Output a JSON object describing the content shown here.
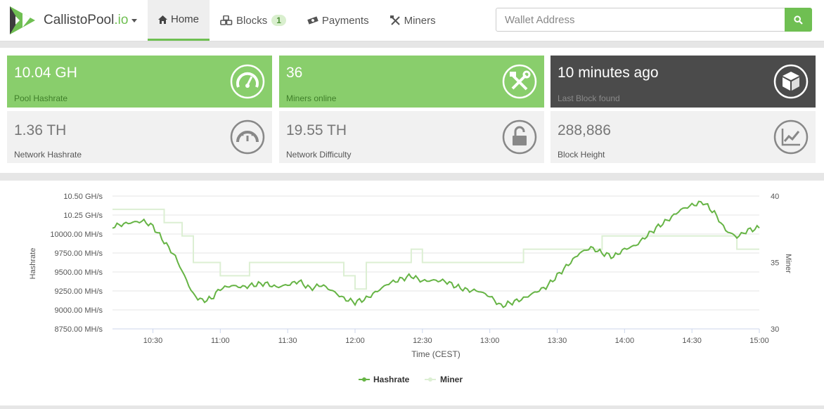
{
  "navbar": {
    "brand_name": "CallistoPool",
    "brand_tld": ".io",
    "items": [
      {
        "label": "Home",
        "icon": "home-icon",
        "active": true
      },
      {
        "label": "Blocks",
        "icon": "cubes-icon",
        "badge": "1"
      },
      {
        "label": "Payments",
        "icon": "money-icon"
      },
      {
        "label": "Miners",
        "icon": "tools-icon"
      }
    ],
    "search_placeholder": "Wallet Address",
    "accent_color": "#6fbf52"
  },
  "stats": {
    "pool_hashrate": {
      "value": "10.04 GH",
      "label": "Pool Hashrate",
      "icon": "speedometer-icon"
    },
    "miners_online": {
      "value": "36",
      "label": "Miners online",
      "icon": "hammer-wrench-icon"
    },
    "last_block": {
      "value": "10 minutes ago",
      "label": "Last Block found",
      "icon": "cube-icon"
    },
    "network_hashrate": {
      "value": "1.36 TH",
      "label": "Network Hashrate",
      "icon": "gauge-icon"
    },
    "network_difficulty": {
      "value": "19.55 TH",
      "label": "Network Difficulty",
      "icon": "unlock-icon"
    },
    "block_height": {
      "value": "288,886",
      "label": "Block Height",
      "icon": "line-chart-icon"
    }
  },
  "chart_data": {
    "type": "line",
    "xlabel": "Time (CEST)",
    "ylabel_left": "Hashrate",
    "ylabel_right": "Miner",
    "x_range": [
      "10:12",
      "15:00"
    ],
    "x_ticks": [
      "10:30",
      "11:00",
      "11:30",
      "12:00",
      "12:30",
      "13:00",
      "13:30",
      "14:00",
      "14:30",
      "15:00"
    ],
    "y_left_ticks": [
      "8750.00 MH/s",
      "9000.00 MH/s",
      "9250.00 MH/s",
      "9500.00 MH/s",
      "9750.00 MH/s",
      "10000.00 MH/s",
      "10.25 GH/s",
      "10.50 GH/s"
    ],
    "y_left_range_mhs": [
      8750,
      10500
    ],
    "y_right_ticks": [
      "30",
      "35",
      "40"
    ],
    "y_right_range": [
      30,
      40
    ],
    "grid": true,
    "legend_position": "bottom-center",
    "series": [
      {
        "name": "Hashrate",
        "color": "#66b445",
        "axis": "left",
        "x": [
          "10:12",
          "10:20",
          "10:26",
          "10:30",
          "10:35",
          "10:40",
          "10:44",
          "10:48",
          "10:52",
          "10:56",
          "11:00",
          "11:05",
          "11:10",
          "11:15",
          "11:20",
          "11:25",
          "11:30",
          "11:35",
          "11:40",
          "11:45",
          "11:50",
          "11:55",
          "12:00",
          "12:05",
          "12:10",
          "12:15",
          "12:20",
          "12:25",
          "12:30",
          "12:35",
          "12:40",
          "12:45",
          "12:50",
          "12:55",
          "13:00",
          "13:05",
          "13:10",
          "13:15",
          "13:20",
          "13:25",
          "13:30",
          "13:35",
          "13:40",
          "13:45",
          "13:50",
          "13:55",
          "14:00",
          "14:05",
          "14:10",
          "14:15",
          "14:20",
          "14:25",
          "14:30",
          "14:35",
          "14:40",
          "14:45",
          "14:50",
          "14:55",
          "15:00"
        ],
        "y": [
          10100,
          10150,
          10170,
          10100,
          9900,
          9700,
          9450,
          9200,
          9120,
          9150,
          9280,
          9320,
          9300,
          9330,
          9350,
          9300,
          9330,
          9380,
          9280,
          9330,
          9250,
          9150,
          9100,
          9150,
          9250,
          9350,
          9400,
          9450,
          9380,
          9390,
          9380,
          9310,
          9260,
          9250,
          9180,
          9050,
          9100,
          9150,
          9230,
          9300,
          9450,
          9600,
          9750,
          9820,
          9750,
          9700,
          9800,
          9850,
          9980,
          10100,
          10200,
          10320,
          10380,
          10420,
          10280,
          10050,
          9960,
          10050,
          10080
        ]
      },
      {
        "name": "Miner",
        "color": "#dcefd3",
        "axis": "right",
        "x": [
          "10:12",
          "10:30",
          "10:35",
          "10:37",
          "10:43",
          "10:48",
          "11:00",
          "11:05",
          "11:13",
          "11:20",
          "11:50",
          "11:55",
          "12:00",
          "12:05",
          "12:15",
          "12:25",
          "12:30",
          "12:45",
          "13:00",
          "13:10",
          "13:15",
          "13:40",
          "13:50",
          "14:00",
          "14:10",
          "14:20",
          "14:30",
          "14:40",
          "14:50",
          "15:00"
        ],
        "y": [
          39,
          39,
          38,
          38,
          37,
          35,
          34,
          34,
          35,
          35,
          35,
          34,
          33,
          35,
          35,
          36,
          35,
          35,
          35,
          35,
          36,
          36,
          37,
          37,
          37,
          37,
          37,
          37,
          36,
          36
        ]
      }
    ]
  }
}
